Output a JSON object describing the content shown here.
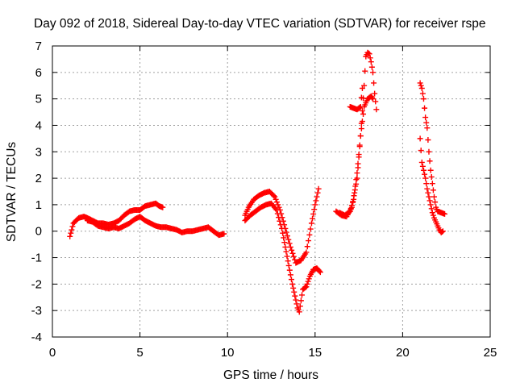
{
  "chart_data": {
    "type": "scatter",
    "title": "Day 092 of 2018, Sidereal Day-to-day VTEC variation (SDTVAR) for receiver rspe",
    "xlabel": "GPS time / hours",
    "ylabel": "SDTVAR / TECUs",
    "xlim": [
      0,
      25
    ],
    "ylim": [
      -4,
      7
    ],
    "xticks": [
      "0",
      "5",
      "10",
      "15",
      "20",
      "25"
    ],
    "yticks": [
      "-4",
      "-3",
      "-2",
      "-1",
      "0",
      "1",
      "2",
      "3",
      "4",
      "5",
      "6",
      "7"
    ],
    "grid": true,
    "marker": "+",
    "color": "#ff0000",
    "series": [
      {
        "name": "segment-1-upper",
        "x": [
          1.0,
          1.2,
          1.5,
          1.8,
          2.0,
          2.3,
          2.6,
          2.9,
          3.2,
          3.5,
          3.8,
          4.1,
          4.4,
          4.7,
          5.0,
          5.3,
          5.6,
          5.9,
          6.1,
          6.3
        ],
        "y": [
          -0.2,
          0.3,
          0.5,
          0.55,
          0.5,
          0.4,
          0.3,
          0.3,
          0.25,
          0.3,
          0.4,
          0.6,
          0.75,
          0.8,
          0.8,
          0.95,
          1.0,
          1.05,
          0.95,
          0.9
        ]
      },
      {
        "name": "segment-1-lower",
        "x": [
          2.0,
          2.3,
          2.6,
          2.9,
          3.2,
          3.5,
          3.8,
          4.1,
          4.4,
          4.7,
          5.0,
          5.3,
          5.6,
          5.9,
          6.2,
          6.5,
          6.8,
          7.1,
          7.4,
          7.7,
          8.0,
          8.3,
          8.6,
          8.9,
          9.2,
          9.5,
          9.8
        ],
        "y": [
          0.4,
          0.35,
          0.2,
          0.15,
          0.1,
          0.15,
          0.1,
          0.2,
          0.3,
          0.45,
          0.55,
          0.4,
          0.3,
          0.2,
          0.15,
          0.15,
          0.1,
          0.05,
          -0.05,
          0.0,
          0.0,
          0.05,
          0.1,
          0.15,
          0.0,
          -0.15,
          -0.1
        ]
      },
      {
        "name": "segment-2-upper",
        "x": [
          11.0,
          11.2,
          11.5,
          11.8,
          12.1,
          12.4,
          12.7,
          13.0,
          13.3,
          13.6,
          13.9,
          14.2,
          14.5,
          14.8,
          15.0,
          15.2
        ],
        "y": [
          0.6,
          0.9,
          1.2,
          1.35,
          1.45,
          1.5,
          1.3,
          0.8,
          0.1,
          -0.6,
          -1.2,
          -1.1,
          -0.8,
          0.3,
          1.0,
          1.6
        ]
      },
      {
        "name": "segment-2-lower",
        "x": [
          11.0,
          11.3,
          11.6,
          11.9,
          12.2,
          12.5,
          12.8,
          13.1,
          13.3,
          13.5,
          13.7,
          13.9,
          14.0,
          14.1,
          14.3,
          14.5,
          14.7,
          14.9,
          15.1,
          15.3
        ],
        "y": [
          0.4,
          0.6,
          0.75,
          0.9,
          1.0,
          1.05,
          0.8,
          0.1,
          -0.6,
          -1.3,
          -2.0,
          -2.6,
          -2.9,
          -3.05,
          -2.2,
          -2.1,
          -1.7,
          -1.45,
          -1.4,
          -1.55
        ]
      },
      {
        "name": "segment-3-upper",
        "x": [
          16.2,
          16.5,
          16.8,
          17.1,
          17.4,
          17.6,
          17.8,
          17.9,
          18.0,
          18.1,
          18.2,
          18.3,
          18.4,
          18.5
        ],
        "y": [
          0.75,
          0.6,
          0.55,
          0.9,
          2.0,
          3.6,
          5.5,
          6.6,
          6.75,
          6.7,
          6.4,
          6.0,
          5.2,
          4.6
        ]
      },
      {
        "name": "segment-3-lower",
        "x": [
          16.4,
          16.7,
          17.0,
          17.2,
          17.4,
          17.6,
          17.8,
          18.0,
          18.2,
          18.3
        ],
        "y": [
          0.7,
          0.6,
          0.75,
          1.2,
          2.2,
          3.6,
          4.7,
          5.0,
          5.1,
          5.0
        ]
      },
      {
        "name": "segment-3-mid",
        "x": [
          17.0,
          17.2,
          17.4,
          17.6,
          17.7
        ],
        "y": [
          4.7,
          4.65,
          4.6,
          4.7,
          5.4
        ]
      },
      {
        "name": "segment-4-upper",
        "x": [
          21.0,
          21.1,
          21.2,
          21.3,
          21.4,
          21.5,
          21.6,
          21.7,
          21.8,
          21.9,
          22.0,
          22.2,
          22.4
        ],
        "y": [
          5.6,
          5.4,
          5.0,
          4.3,
          3.9,
          3.0,
          2.3,
          1.8,
          1.3,
          0.9,
          0.75,
          0.7,
          0.65
        ]
      },
      {
        "name": "segment-4-lower",
        "x": [
          21.0,
          21.1,
          21.2,
          21.3,
          21.4,
          21.5,
          21.6,
          21.7,
          21.8,
          21.9,
          22.0,
          22.1,
          22.2,
          22.3
        ],
        "y": [
          3.5,
          2.6,
          2.3,
          2.0,
          1.6,
          1.3,
          1.0,
          0.7,
          0.5,
          0.35,
          0.2,
          0.05,
          -0.05,
          0.0
        ]
      }
    ]
  }
}
